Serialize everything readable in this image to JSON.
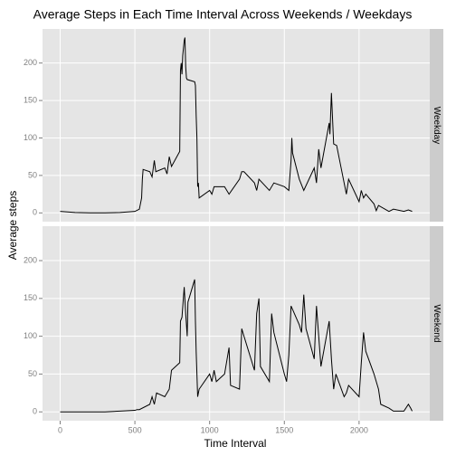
{
  "title": "Average Steps in Each Time Interval Across Weekends / Weekdays",
  "x_label": "Time Interval",
  "y_label": "Average steps",
  "chart_data": [
    {
      "type": "line",
      "name": "Weekday",
      "color": "#000000",
      "grid": true,
      "xlim": [
        -118,
        2473
      ],
      "ylim": [
        -11.7,
        245.5
      ],
      "xticks": [
        0,
        500,
        1000,
        1500,
        2000
      ],
      "yticks": [
        0,
        50,
        100,
        150,
        200
      ],
      "x": [
        0,
        100,
        200,
        300,
        400,
        500,
        530,
        545,
        550,
        555,
        600,
        615,
        630,
        640,
        700,
        715,
        730,
        745,
        800,
        805,
        810,
        815,
        820,
        830,
        835,
        840,
        845,
        850,
        900,
        905,
        910,
        915,
        920,
        925,
        930,
        1000,
        1015,
        1030,
        1100,
        1130,
        1200,
        1215,
        1230,
        1300,
        1315,
        1330,
        1400,
        1430,
        1500,
        1530,
        1545,
        1550,
        1555,
        1600,
        1630,
        1700,
        1715,
        1730,
        1745,
        1800,
        1805,
        1815,
        1830,
        1850,
        1900,
        1915,
        1930,
        2000,
        2015,
        2030,
        2045,
        2100,
        2115,
        2130,
        2200,
        2230,
        2300,
        2330,
        2355
      ],
      "values": [
        2,
        0.5,
        0,
        0,
        0.5,
        2,
        5,
        20,
        45,
        58,
        55,
        48,
        70,
        55,
        60,
        52,
        75,
        62,
        82,
        190,
        200,
        185,
        210,
        230,
        234,
        195,
        180,
        178,
        175,
        170,
        130,
        100,
        35,
        40,
        20,
        30,
        25,
        35,
        35,
        25,
        45,
        55,
        55,
        40,
        30,
        45,
        30,
        40,
        35,
        30,
        70,
        100,
        80,
        45,
        30,
        60,
        40,
        85,
        60,
        120,
        105,
        160,
        92,
        90,
        40,
        25,
        45,
        15,
        30,
        20,
        25,
        12,
        3,
        10,
        2,
        5,
        2,
        4,
        2
      ]
    },
    {
      "type": "line",
      "name": "Weekend",
      "color": "#000000",
      "grid": true,
      "xlim": [
        -118,
        2473
      ],
      "ylim": [
        -11.7,
        245.5
      ],
      "xticks": [
        0,
        500,
        1000,
        1500,
        2000
      ],
      "yticks": [
        0,
        50,
        100,
        150,
        200
      ],
      "x": [
        0,
        100,
        200,
        300,
        400,
        500,
        515,
        530,
        600,
        615,
        630,
        645,
        700,
        730,
        745,
        800,
        805,
        815,
        830,
        840,
        845,
        850,
        855,
        900,
        905,
        910,
        915,
        920,
        930,
        1000,
        1015,
        1030,
        1045,
        1100,
        1130,
        1140,
        1200,
        1215,
        1230,
        1300,
        1315,
        1330,
        1340,
        1400,
        1415,
        1430,
        1500,
        1515,
        1530,
        1545,
        1600,
        1615,
        1630,
        1645,
        1700,
        1715,
        1730,
        1745,
        1800,
        1815,
        1830,
        1845,
        1900,
        1915,
        1930,
        2000,
        2015,
        2030,
        2045,
        2100,
        2130,
        2145,
        2200,
        2230,
        2300,
        2330,
        2345,
        2355
      ],
      "values": [
        0,
        0,
        0,
        0,
        1,
        2,
        3,
        3,
        10,
        20,
        10,
        25,
        20,
        30,
        55,
        65,
        120,
        125,
        165,
        130,
        115,
        100,
        145,
        175,
        120,
        80,
        50,
        20,
        30,
        50,
        40,
        55,
        40,
        50,
        85,
        35,
        30,
        110,
        100,
        55,
        130,
        150,
        60,
        40,
        130,
        105,
        50,
        40,
        75,
        140,
        115,
        105,
        155,
        110,
        70,
        140,
        100,
        60,
        120,
        70,
        30,
        50,
        20,
        25,
        35,
        20,
        65,
        105,
        80,
        50,
        30,
        10,
        5,
        1,
        1,
        10,
        5,
        1
      ]
    }
  ]
}
